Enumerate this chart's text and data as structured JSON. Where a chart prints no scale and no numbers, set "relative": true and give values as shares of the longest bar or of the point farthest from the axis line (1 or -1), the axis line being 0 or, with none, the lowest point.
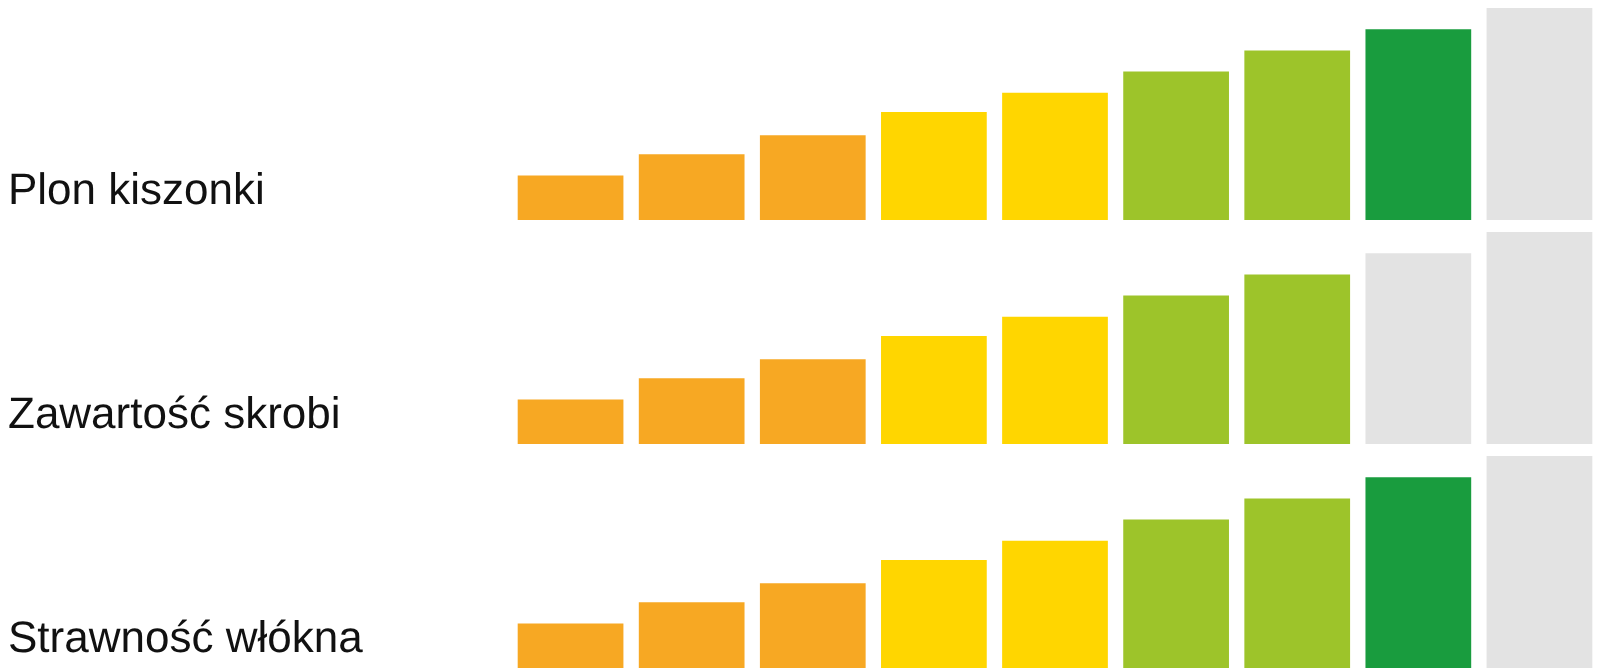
{
  "chart_data": [
    {
      "type": "bar",
      "title": "Plon kiszonki",
      "relative": true,
      "categories": [
        null,
        null,
        null,
        null,
        null,
        null,
        null,
        null,
        null
      ],
      "values": [
        0.21,
        0.31,
        0.4,
        0.51,
        0.6,
        0.7,
        0.8,
        0.9,
        1
      ],
      "colors": [
        "#f7a823",
        "#f7a823",
        "#f7a823",
        "#ffd600",
        "#ffd600",
        "#9dc42a",
        "#9dc42a",
        "#199c3e",
        "#e3e3e3"
      ]
    },
    {
      "type": "bar",
      "title": "Zawartość skrobi",
      "relative": true,
      "categories": [
        null,
        null,
        null,
        null,
        null,
        null,
        null,
        null,
        null
      ],
      "values": [
        0.21,
        0.31,
        0.4,
        0.51,
        0.6,
        0.7,
        0.8,
        0.9,
        1
      ],
      "colors": [
        "#f7a823",
        "#f7a823",
        "#f7a823",
        "#ffd600",
        "#ffd600",
        "#9dc42a",
        "#9dc42a",
        "#e3e3e3",
        "#e3e3e3"
      ]
    },
    {
      "type": "bar",
      "title": "Strawność włókna",
      "relative": true,
      "categories": [
        null,
        null,
        null,
        null,
        null,
        null,
        null,
        null,
        null
      ],
      "values": [
        0.21,
        0.31,
        0.4,
        0.51,
        0.6,
        0.7,
        0.8,
        0.9,
        1
      ],
      "colors": [
        "#f7a823",
        "#f7a823",
        "#f7a823",
        "#ffd600",
        "#ffd600",
        "#9dc42a",
        "#9dc42a",
        "#199c3e",
        "#e3e3e3"
      ]
    }
  ]
}
